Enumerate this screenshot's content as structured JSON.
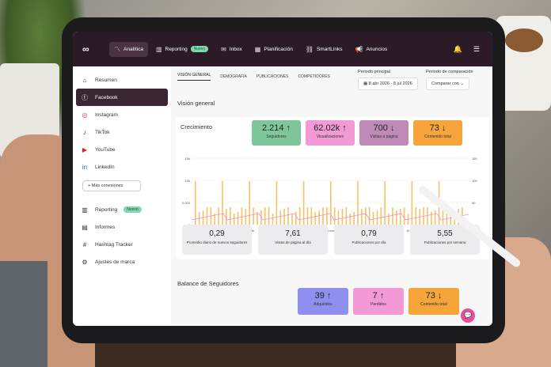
{
  "app": {
    "logo": "∞"
  },
  "topnav": {
    "items": [
      {
        "icon": "chart-line-icon",
        "label": "Analítica",
        "active": true
      },
      {
        "icon": "bar-chart-icon",
        "label": "Reporting",
        "badge": "Nuevo"
      },
      {
        "icon": "inbox-icon",
        "label": "Inbox"
      },
      {
        "icon": "calendar-icon",
        "label": "Planificación"
      },
      {
        "icon": "link-icon",
        "label": "SmartLinks"
      },
      {
        "icon": "megaphone-icon",
        "label": "Anuncios"
      }
    ]
  },
  "sidebar": {
    "items": [
      {
        "icon": "home-icon",
        "label": "Resumen"
      },
      {
        "icon": "facebook-icon",
        "label": "Facebook",
        "active": true
      },
      {
        "icon": "instagram-icon",
        "label": "Instagram"
      },
      {
        "icon": "tiktok-icon",
        "label": "TikTok"
      },
      {
        "icon": "youtube-icon",
        "label": "YouTube"
      },
      {
        "icon": "linkedin-icon",
        "label": "LinkedIn"
      }
    ],
    "more_button": "+ Más conexiones",
    "bottom": [
      {
        "icon": "bar-chart-icon",
        "label": "Reporting",
        "badge": "Nuevo"
      },
      {
        "icon": "document-icon",
        "label": "Informes"
      },
      {
        "icon": "hashtag-icon",
        "label": "Hashtag Tracker"
      },
      {
        "icon": "sliders-icon",
        "label": "Ajustes de marca"
      }
    ]
  },
  "tabs": [
    "VISIÓN GENERAL",
    "DEMOGRAFÍA",
    "PUBLICACIONES",
    "COMPETIDORES"
  ],
  "period": {
    "main_label": "Periodo principal",
    "main_value": "8 abr 2026 - 8 jul 2026",
    "compare_label": "Periodo de comparación",
    "compare_value": "Comparar con"
  },
  "overview_title": "Visión general",
  "growth_title": "Crecimiento",
  "kpis": [
    {
      "value": "2.214 ↑",
      "label": "Seguidores",
      "color": "#7fc79a"
    },
    {
      "value": "62.02k ↑",
      "label": "Visualizaciones",
      "color": "#f39ad6"
    },
    {
      "value": "700 ↓",
      "label": "Visitas a página",
      "color": "#c08ab8"
    },
    {
      "value": "73 ↓",
      "label": "Contenido total",
      "color": "#f6a53a"
    }
  ],
  "chart_data": {
    "type": "bar",
    "y_ticks_left": [
      "15k",
      "10k",
      "5.000",
      "0"
    ],
    "y_ticks_right": [
      "150",
      "100",
      "50",
      "0"
    ],
    "x_ticks": [
      "8 abr",
      "16 abr",
      "28 abr",
      "5 may",
      "14 may",
      "23 may",
      "1 jun",
      "10 jun",
      "19 jun",
      "28 jun",
      "7 jul"
    ]
  },
  "stats": [
    {
      "value": "0,29",
      "label": "Promedio diario de nuevos seguidores"
    },
    {
      "value": "7,61",
      "label": "Vistas de página al día"
    },
    {
      "value": "0,79",
      "label": "Publicaciones por día"
    },
    {
      "value": "5,55",
      "label": "Publicaciones por semana"
    }
  ],
  "balance_title": "Balance de Seguidores",
  "balance_kpis": [
    {
      "value": "39 ↑",
      "label": "Adquiridos",
      "color": "#8f8ff0"
    },
    {
      "value": "7 ↑",
      "label": "Perdidos",
      "color": "#f39ad6"
    },
    {
      "value": "73 ↓",
      "label": "Contenido total",
      "color": "#f6a53a"
    }
  ]
}
